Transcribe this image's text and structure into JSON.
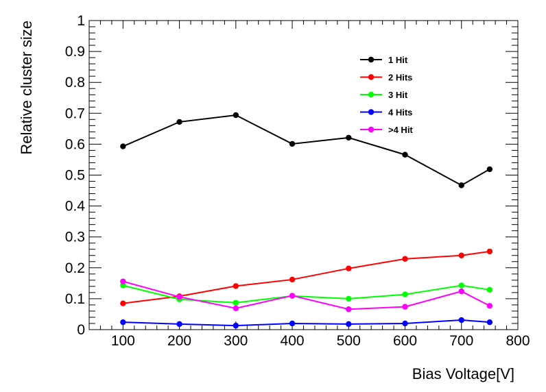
{
  "chart_data": {
    "type": "line",
    "title": "",
    "xlabel": "Bias Voltage[V]",
    "ylabel": "Relative cluster size",
    "xlim": [
      40,
      800
    ],
    "ylim": [
      0,
      1
    ],
    "x_ticks": [
      100,
      200,
      300,
      400,
      500,
      600,
      700,
      800
    ],
    "y_ticks": [
      0,
      0.1,
      0.2,
      0.3,
      0.4,
      0.5,
      0.6,
      0.7,
      0.8,
      0.9,
      1
    ],
    "x_tick_labels": [
      "100",
      "200",
      "300",
      "400",
      "500",
      "600",
      "700",
      "800"
    ],
    "y_tick_labels": [
      "0",
      "0.1",
      "0.2",
      "0.3",
      "0.4",
      "0.5",
      "0.6",
      "0.7",
      "0.8",
      "0.9",
      "1"
    ],
    "grid": false,
    "legend_position": "top-right",
    "x": [
      100,
      200,
      300,
      400,
      500,
      600,
      700,
      750
    ],
    "series": [
      {
        "name": "1 Hit",
        "color": "#000000",
        "values": [
          0.593,
          0.672,
          0.694,
          0.601,
          0.621,
          0.566,
          0.467,
          0.519
        ]
      },
      {
        "name": "2 Hits",
        "color": "#ff0000",
        "values": [
          0.085,
          0.108,
          0.141,
          0.162,
          0.198,
          0.229,
          0.24,
          0.253
        ]
      },
      {
        "name": "3 Hit",
        "color": "#00ff00",
        "values": [
          0.143,
          0.098,
          0.087,
          0.109,
          0.1,
          0.114,
          0.143,
          0.129
        ]
      },
      {
        "name": "4 Hits",
        "color": "#0000ff",
        "values": [
          0.024,
          0.018,
          0.013,
          0.02,
          0.018,
          0.02,
          0.031,
          0.024
        ]
      },
      {
        "name": ">4 Hit",
        "color": "#ff00ff",
        "values": [
          0.156,
          0.106,
          0.069,
          0.11,
          0.066,
          0.074,
          0.124,
          0.077
        ]
      }
    ]
  }
}
